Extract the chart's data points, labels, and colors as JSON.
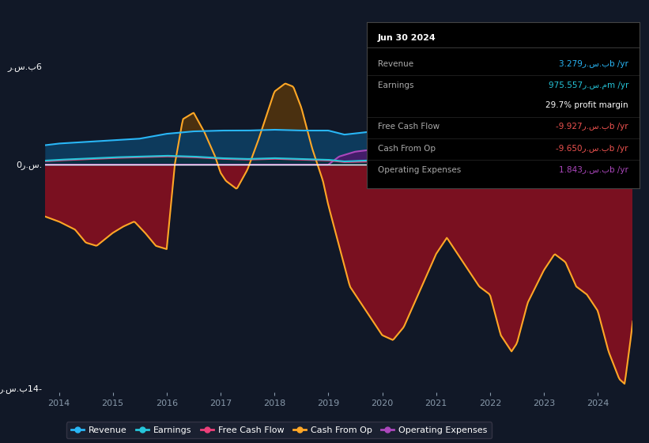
{
  "bg_color": "#111827",
  "plot_bg_color": "#111827",
  "ylim": [
    -14,
    7
  ],
  "ylabel_top": "ر.س.ب6",
  "ylabel_bottom": "ر.س.ب14-",
  "ylabel_zero": "0ر.س.",
  "colors": {
    "revenue": "#29b6f6",
    "earnings": "#26c6da",
    "fcf": "#ec407a",
    "cashop": "#ffa726",
    "opex": "#ab47bc",
    "zero_line": "#ffffff",
    "grid": "#1e2a3a"
  },
  "legend": [
    "Revenue",
    "Earnings",
    "Free Cash Flow",
    "Cash From Op",
    "Operating Expenses"
  ],
  "legend_colors": [
    "#29b6f6",
    "#26c6da",
    "#ec407a",
    "#ffa726",
    "#ab47bc"
  ],
  "info_title": "Jun 30 2024",
  "info_rows": [
    {
      "label": "Revenue",
      "value": "3.279ر.س.بb /yr",
      "color": "#29b6f6"
    },
    {
      "label": "Earnings",
      "value": "975.557ر.س.مm /yr",
      "color": "#26c6da"
    },
    {
      "label": "",
      "value": "29.7% profit margin",
      "color": "#ffffff"
    },
    {
      "label": "Free Cash Flow",
      "value": "-9.927ر.س.بb /yr",
      "color": "#ef5350"
    },
    {
      "label": "Cash From Op",
      "value": "-9.650ر.س.بb /yr",
      "color": "#ef5350"
    },
    {
      "label": "Operating Expenses",
      "value": "1.843ر.س.بb /yr",
      "color": "#ab47bc"
    }
  ]
}
